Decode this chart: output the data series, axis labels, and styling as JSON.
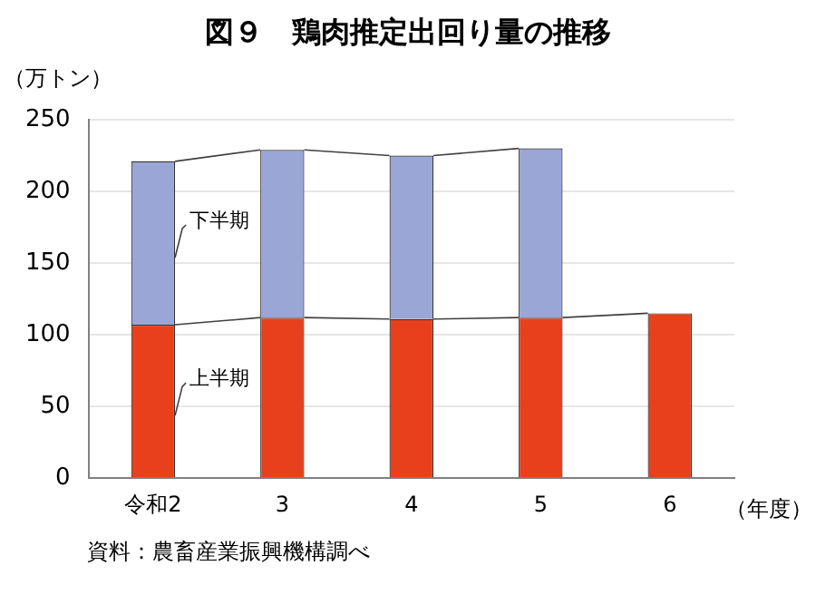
{
  "chart_data": {
    "type": "bar",
    "title": "図９　鶏肉推定出回り量の推移",
    "ylabel": "（万トン）",
    "xlabel": "（年度）",
    "categories": [
      "令和2",
      "3",
      "4",
      "5",
      "6"
    ],
    "stacked": true,
    "series": [
      {
        "name": "上半期",
        "color": "#e8401c",
        "values": [
          107,
          112,
          111,
          112,
          115
        ]
      },
      {
        "name": "下半期",
        "color": "#9aa6d6",
        "values": [
          114,
          117,
          114,
          118,
          null
        ]
      }
    ],
    "ylim": [
      0,
      250
    ],
    "yticks": [
      0,
      50,
      100,
      150,
      200,
      250
    ],
    "grid": "y",
    "legend": false,
    "annotations": [
      "資料：農畜産業振興機構調べ"
    ]
  }
}
